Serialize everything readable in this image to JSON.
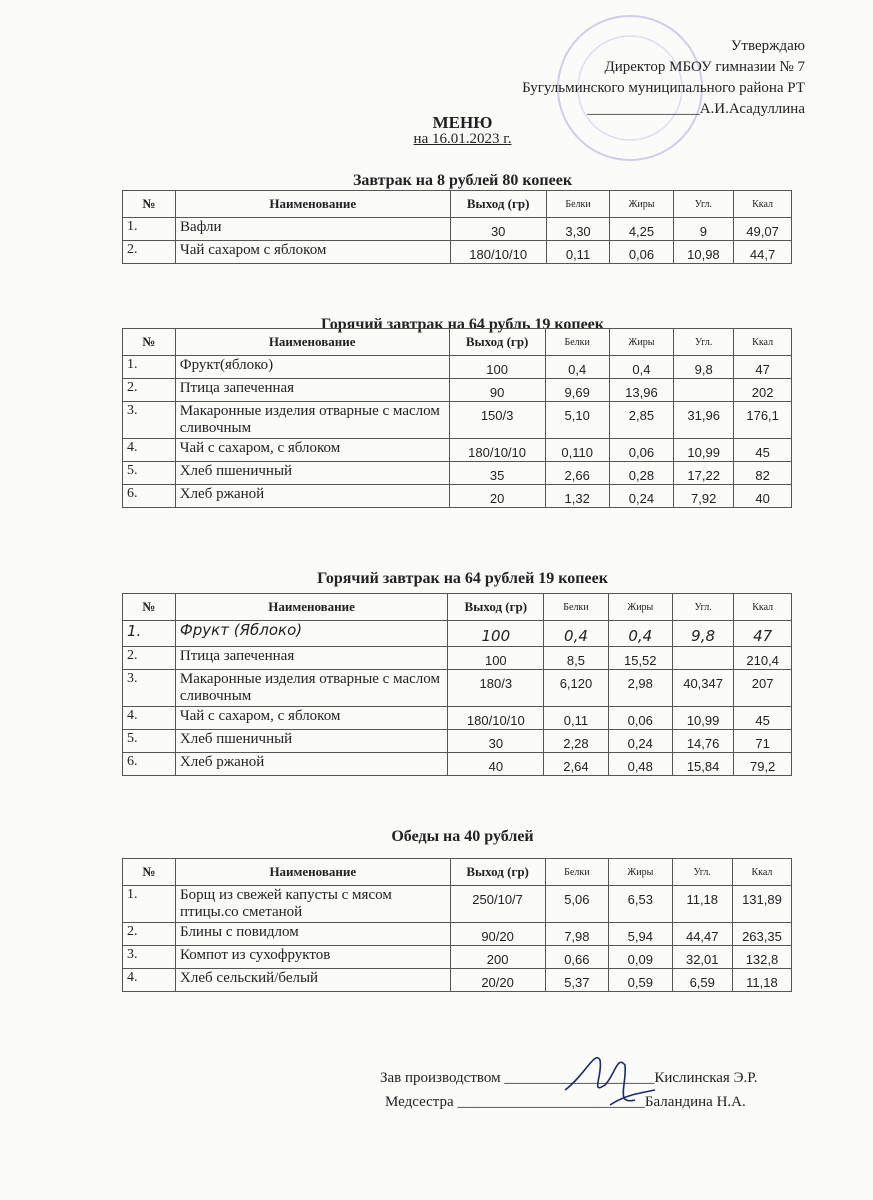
{
  "approval": {
    "line1": "Утверждаю",
    "line2": "Директор МБОУ гимназии № 7",
    "line3": "Бугульминского муниципального района РТ",
    "line4": "_______________А.И.Асадуллина"
  },
  "menu_title": "МЕНЮ",
  "menu_date": "на 16.01.2023 г.",
  "columns": [
    "№",
    "Наименование",
    "Выход (гр)",
    "Белки",
    "Жиры",
    "Угл.",
    "Ккал"
  ],
  "sections": [
    {
      "title": "Завтрак на 8 рублей 80 копеек",
      "rows": [
        [
          "1.",
          "Вафли",
          "30",
          "3,30",
          "4,25",
          "9",
          "49,07"
        ],
        [
          "2.",
          "Чай сахаром с яблоком",
          "180/10/10",
          "0,11",
          "0,06",
          "10,98",
          "44,7"
        ]
      ]
    },
    {
      "title": "Горячий завтрак на 64 рубль 19 копеек",
      "rows": [
        [
          "1.",
          "Фрукт(яблоко)",
          "100",
          "0,4",
          "0,4",
          "9,8",
          "47"
        ],
        [
          "2.",
          "Птица запеченная",
          "90",
          "9,69",
          "13,96",
          "",
          "202"
        ],
        [
          "3.",
          "Макаронные изделия отварные с маслом сливочным",
          "150/3",
          "5,10",
          "2,85",
          "31,96",
          "176,1"
        ],
        [
          "4.",
          "Чай с сахаром, с яблоком",
          "180/10/10",
          "0,110",
          "0,06",
          "10,99",
          "45"
        ],
        [
          "5.",
          "Хлеб пшеничный",
          "35",
          "2,66",
          "0,28",
          "17,22",
          "82"
        ],
        [
          "6.",
          "Хлеб ржаной",
          "20",
          "1,32",
          "0,24",
          "7,92",
          "40"
        ]
      ]
    },
    {
      "title": "Горячий завтрак на 64 рублей 19 копеек",
      "rows": [
        [
          "1.",
          "Фрукт (Яблоко)",
          "100",
          "0,4",
          "0,4",
          "9,8",
          "47"
        ],
        [
          "2.",
          "Птица запеченная",
          "100",
          "8,5",
          "15,52",
          "",
          "210,4"
        ],
        [
          "3.",
          "Макаронные изделия отварные с маслом сливочным",
          "180/3",
          "6,120",
          "2,98",
          "40,347",
          "207"
        ],
        [
          "4.",
          "Чай с сахаром, с яблоком",
          "180/10/10",
          "0,11",
          "0,06",
          "10,99",
          "45"
        ],
        [
          "5.",
          "Хлеб пшеничный",
          "30",
          "2,28",
          "0,24",
          "14,76",
          "71"
        ],
        [
          "6.",
          "Хлеб ржаной",
          "40",
          "2,64",
          "0,48",
          "15,84",
          "79,2"
        ]
      ]
    },
    {
      "title": "Обеды на 40 рублей",
      "rows": [
        [
          "1.",
          "Борщ из свежей капусты  с мясом птицы.со сметаной",
          "250/10/7",
          "5,06",
          "6,53",
          "11,18",
          "131,89"
        ],
        [
          "2.",
          "Блины с повидлом",
          "90/20",
          "7,98",
          "5,94",
          "44,47",
          "263,35"
        ],
        [
          "3.",
          "Компот из сухофруктов",
          "200",
          "0,66",
          "0,09",
          "32,01",
          "132,8"
        ],
        [
          "4.",
          "Хлеб сельский/белый",
          "20/20",
          "5,37",
          "0,59",
          "6,59",
          "11,18"
        ]
      ]
    }
  ],
  "signatures": {
    "production": "Зав производством ____________________Кислинская Э.Р.",
    "nurse": "Медсестра _________________________Баландина Н.А."
  },
  "colors": {
    "stamp": "#8a78c8",
    "ink": "#1d2a6b"
  }
}
